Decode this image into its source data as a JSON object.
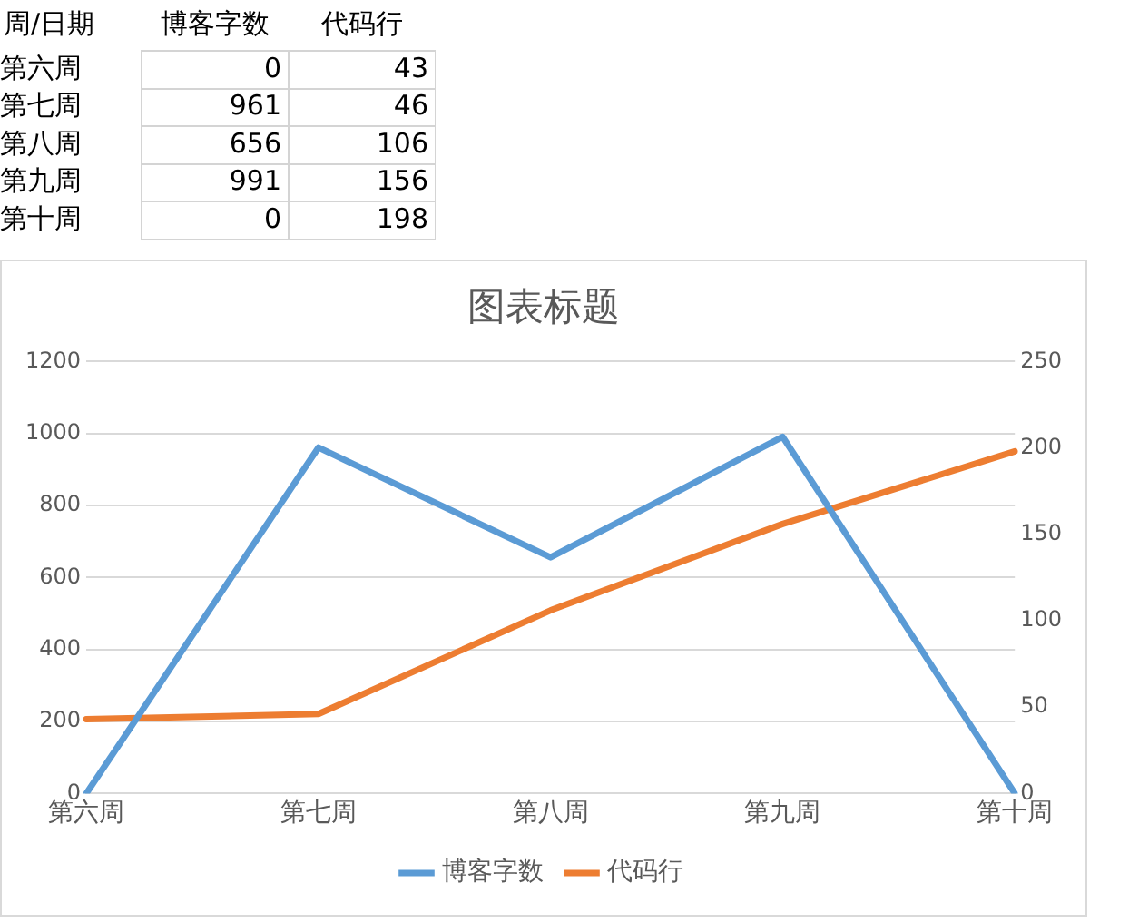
{
  "chart_data": [
    {
      "type": "heatmap",
      "ylabel": "周/日期",
      "categories": [
        "博客字数",
        "代码行"
      ],
      "y_categories": [
        "第六周",
        "第七周",
        "第八周",
        "第九周",
        "第十周"
      ],
      "cells": [
        [
          0,
          43
        ],
        [
          961,
          46
        ],
        [
          656,
          106
        ],
        [
          991,
          156
        ],
        [
          0,
          198
        ]
      ],
      "data_labels": true
    },
    {
      "type": "line",
      "title": "图表标题",
      "categories": [
        "第六周",
        "第七周",
        "第八周",
        "第九周",
        "第十周"
      ],
      "series": [
        {
          "name": "博客字数",
          "color": "#5b9bd5",
          "values": [
            0,
            961,
            656,
            991,
            0
          ]
        },
        {
          "name": "代码行",
          "color": "#ed7d31",
          "values": [
            43,
            46,
            106,
            156,
            198
          ],
          "axis": "y2"
        }
      ],
      "ylim": [
        0,
        1200
      ],
      "yticks": [
        0,
        200,
        400,
        600,
        800,
        1000,
        1200
      ],
      "y2lim": [
        0,
        250
      ],
      "y2ticks": [
        0,
        50,
        100,
        150,
        200,
        250
      ],
      "grid": "y",
      "legend": "bottom",
      "marker": "none",
      "line_style": "solid"
    }
  ]
}
